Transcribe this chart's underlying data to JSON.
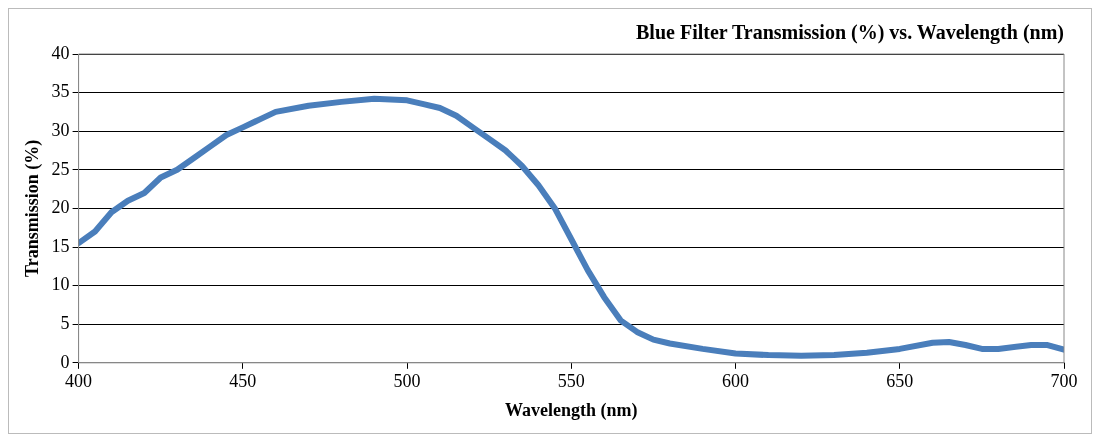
{
  "chart_data": {
    "type": "line",
    "title": "Blue Filter Transmission (%) vs. Wavelength (nm)",
    "xlabel": "Wavelength (nm)",
    "ylabel": "Transmission (%)",
    "x": [
      400,
      405,
      410,
      415,
      420,
      425,
      430,
      435,
      440,
      445,
      450,
      455,
      460,
      470,
      480,
      490,
      500,
      505,
      510,
      515,
      520,
      525,
      530,
      535,
      540,
      545,
      550,
      555,
      560,
      565,
      570,
      575,
      580,
      590,
      600,
      610,
      620,
      630,
      640,
      650,
      660,
      665,
      670,
      675,
      680,
      690,
      695,
      700
    ],
    "series": [
      {
        "color": "#4a7ebb",
        "values": [
          15.5,
          17,
          19.5,
          21,
          22,
          24,
          25,
          26.5,
          28,
          29.5,
          30.5,
          31.5,
          32.5,
          33.3,
          33.8,
          34.2,
          34,
          33.5,
          33,
          32,
          30.5,
          29,
          27.5,
          25.5,
          23,
          20,
          16,
          12,
          8.5,
          5.5,
          4,
          3,
          2.5,
          1.8,
          1.2,
          1,
          0.9,
          1,
          1.3,
          1.8,
          2.6,
          2.7,
          2.3,
          1.8,
          1.8,
          2.3,
          2.3,
          1.7
        ]
      }
    ],
    "xlim": [
      400,
      700
    ],
    "xticks": [
      400,
      450,
      500,
      550,
      600,
      650,
      700
    ],
    "ylim": [
      0,
      40
    ],
    "yticks": [
      0,
      5,
      10,
      15,
      20,
      25,
      30,
      35,
      40
    ],
    "grid": "y",
    "legend": false,
    "marker": "none",
    "line_style": "solid"
  }
}
